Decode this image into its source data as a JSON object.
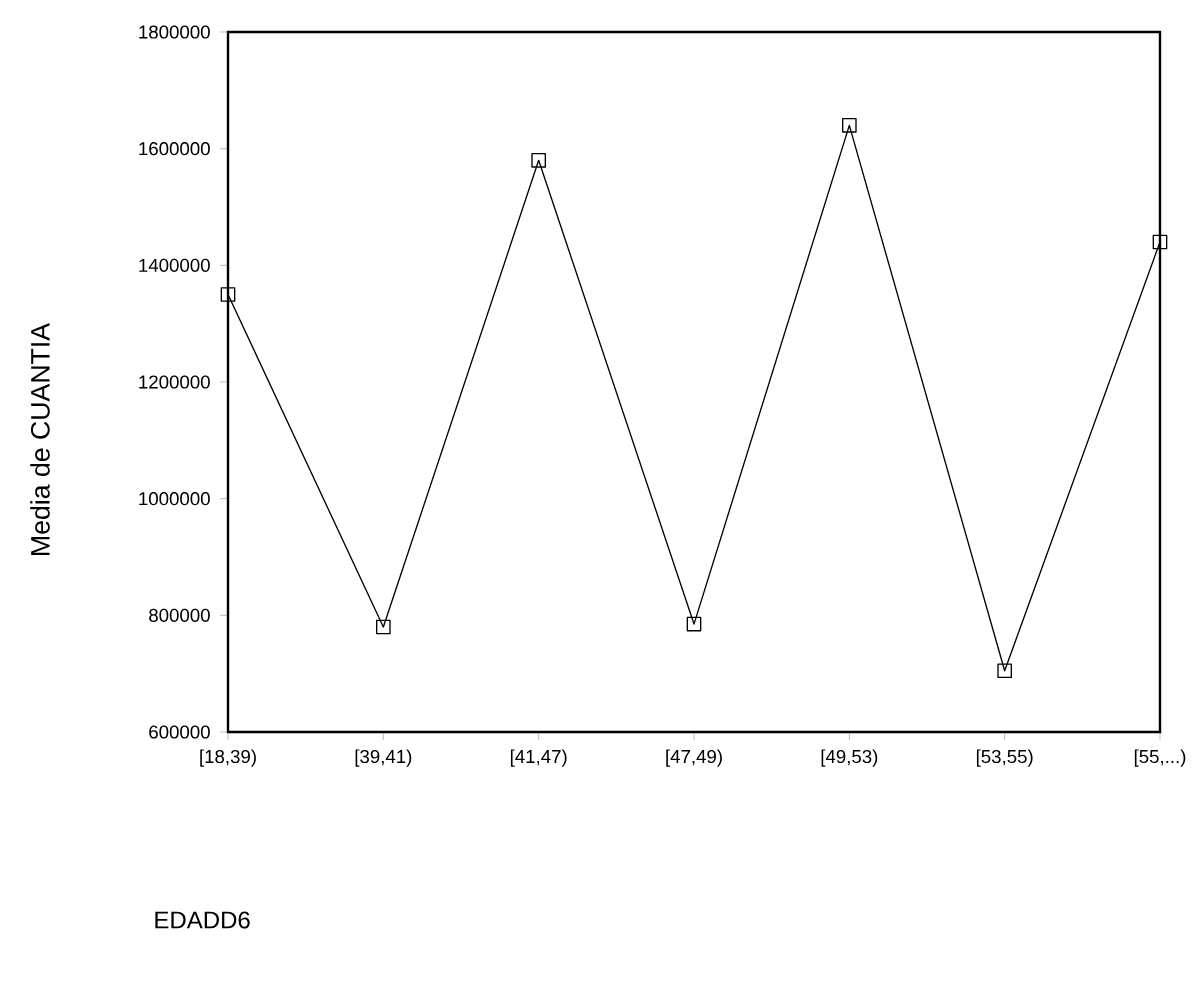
{
  "chart_data": {
    "type": "line",
    "annotations": [
      "EDADD6"
    ],
    "ylabel": "Media de CUANTIA",
    "categories": [
      "[18,39)",
      "[39,41)",
      "[41,47)",
      "[47,49)",
      "[49,53)",
      "[53,55)",
      "[55,...)"
    ],
    "values": [
      1350000,
      780000,
      1580000,
      785000,
      1640000,
      705000,
      1440000
    ],
    "color": "#000000",
    "marker": "square",
    "line_style": "solid",
    "grid": false,
    "ylim": [
      600000,
      1800000
    ],
    "yticks": [
      600000,
      800000,
      1000000,
      1200000,
      1400000,
      1600000,
      1800000
    ]
  }
}
